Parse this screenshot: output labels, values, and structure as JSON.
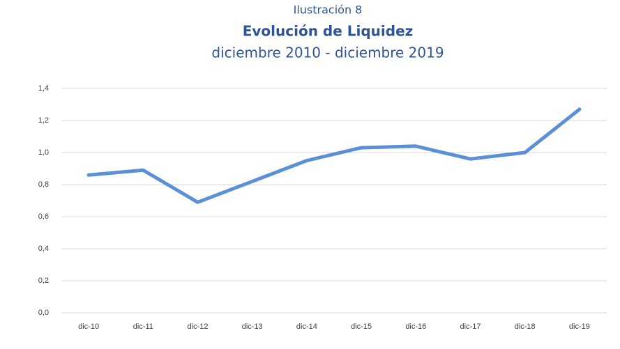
{
  "chart_data": {
    "type": "line",
    "label": "Ilustración 8",
    "title": "Evolución de Liquidez",
    "subtitle": "diciembre 2010 - diciembre 2019",
    "categories": [
      "dic-10",
      "dic-11",
      "dic-12",
      "dic-13",
      "dic-14",
      "dic-15",
      "dic-16",
      "dic-17",
      "dic-18",
      "dic-19"
    ],
    "values": [
      0.86,
      0.89,
      0.69,
      0.82,
      0.95,
      1.03,
      1.04,
      0.96,
      1.0,
      1.27
    ],
    "color": "#5b8fd6",
    "ylim": [
      0,
      1.4
    ],
    "yticks": [
      {
        "value": 0,
        "label": "0,0"
      },
      {
        "value": 0.2,
        "label": "0,2"
      },
      {
        "value": 0.4,
        "label": "0,4"
      },
      {
        "value": 0.6,
        "label": "0,6"
      },
      {
        "value": 0.8,
        "label": "0,8"
      },
      {
        "value": 1.0,
        "label": "1,0"
      },
      {
        "value": 1.2,
        "label": "1,2"
      },
      {
        "value": 1.4,
        "label": "1,4"
      }
    ],
    "grid": true
  }
}
